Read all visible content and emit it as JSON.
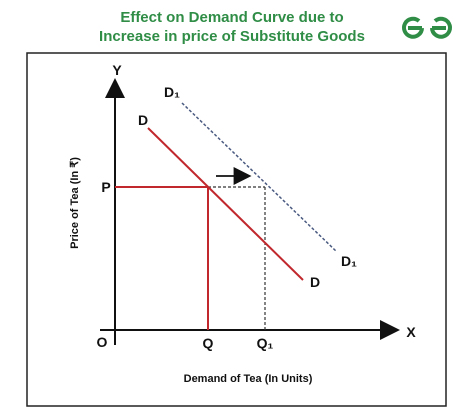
{
  "header": {
    "title_lines": [
      "Effect on Demand Curve due to",
      "Increase in price of Substitute Goods"
    ]
  },
  "axes": {
    "y_letter": "Y",
    "x_letter": "X",
    "origin": "O",
    "y_label": "Price of Tea (In ₹)",
    "x_label": "Demand of Tea (In Units)"
  },
  "points": {
    "price": "P",
    "quantity": "Q",
    "new_quantity": "Q₁"
  },
  "curves": {
    "original": {
      "top_label": "D",
      "bottom_label": "D"
    },
    "shifted": {
      "top_label": "D₁",
      "bottom_label": "D₁"
    }
  }
}
